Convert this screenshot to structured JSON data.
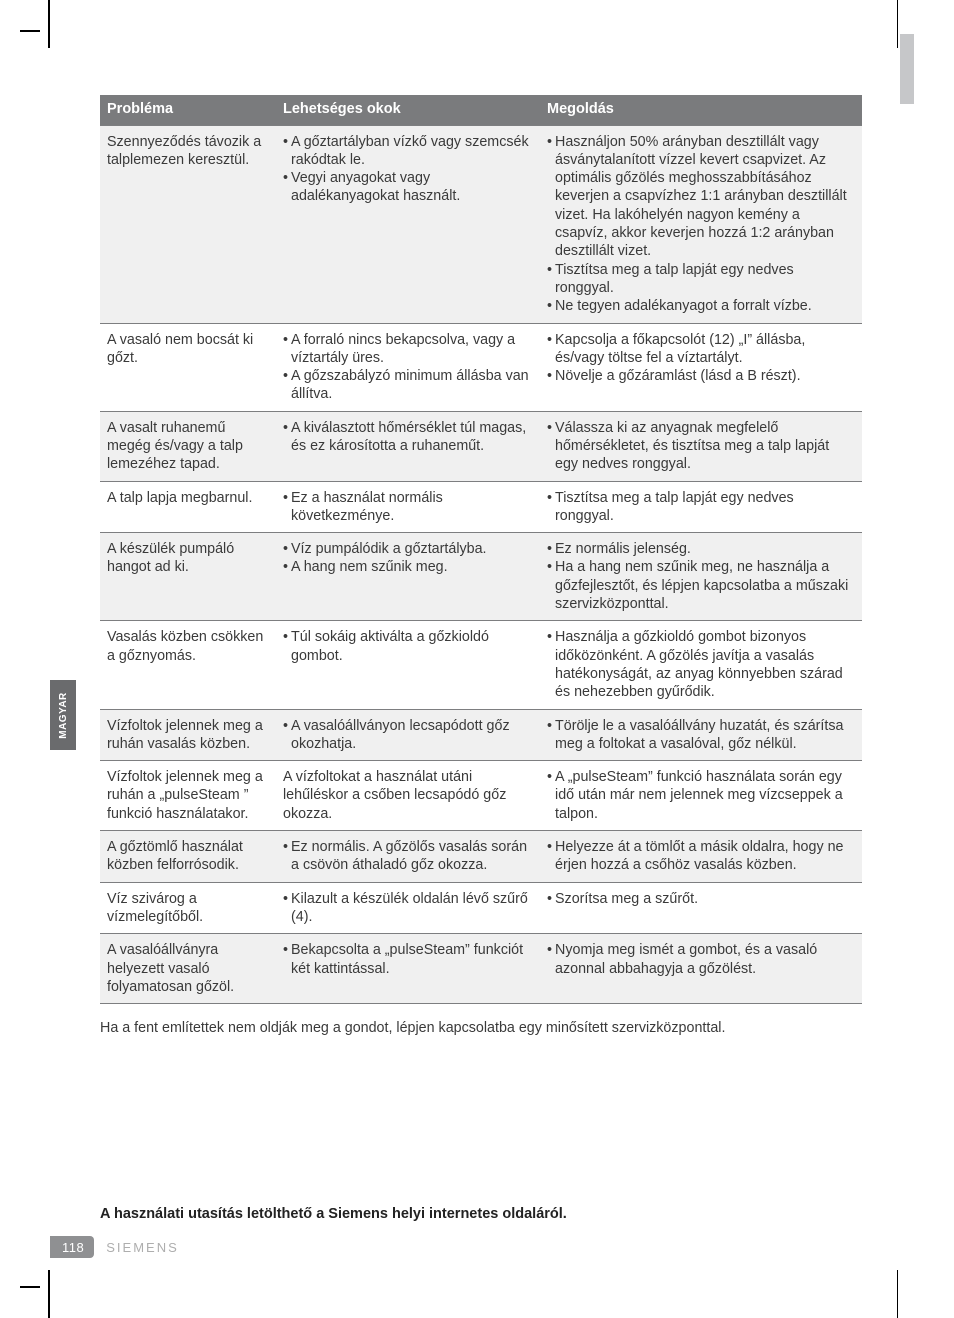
{
  "side_tab": "MAGYAR",
  "page_number": "118",
  "brand": "SIEMENS",
  "headers": {
    "problem": "Probléma",
    "cause": "Lehetséges okok",
    "solution": "Megoldás"
  },
  "rows": [
    {
      "shade": true,
      "problem": "Szennyeződés távozik a talplemezen keresztül.",
      "causes": [
        "A gőztartályban vízkő vagy szemcsék rakódtak le.",
        "Vegyi anyagokat vagy adalékanyagokat használt."
      ],
      "solutions": [
        "Használjon 50% arányban desztillált vagy ásványtalanított vízzel kevert csapvizet. Az optimális gőzölés meghosszabbításához keverjen a csapvízhez 1:1 arányban desztillált vizet. Ha lakóhelyén nagyon kemény a csapvíz, akkor keverjen hozzá 1:2 arányban desztillált vizet.",
        "Tisztítsa meg a talp lapját egy nedves ronggyal.",
        "Ne tegyen adalékanyagot a forralt vízbe."
      ]
    },
    {
      "shade": false,
      "problem": "A vasaló nem bocsát ki gőzt.",
      "causes": [
        "A forraló nincs bekapcsolva, vagy a víztartály üres.",
        "A gőzszabályzó minimum állásba van állítva."
      ],
      "solutions": [
        "Kapcsolja a főkapcsolót (12) „I” állásba, és/vagy töltse fel a víztartályt.",
        "Növelje a gőzáramlást (lásd a B részt)."
      ]
    },
    {
      "shade": true,
      "problem": "A vasalt ruhanemű megég és/vagy a talp lemezéhez tapad.",
      "causes": [
        "A kiválasztott hőmérséklet túl magas, és ez károsította a ruhaneműt."
      ],
      "solutions": [
        "Válassza ki az anyagnak megfelelő hőmérsékletet, és tisztítsa meg a talp lapját egy nedves ronggyal."
      ]
    },
    {
      "shade": false,
      "problem": "A talp lapja megbarnul.",
      "causes": [
        "Ez a használat normális következménye."
      ],
      "solutions": [
        "Tisztítsa meg a talp lapját egy nedves ronggyal."
      ]
    },
    {
      "shade": true,
      "problem": "A készülék pumpáló hangot ad ki.",
      "causes": [
        "Víz pumpálódik a gőztartályba.",
        "A hang nem szűnik meg."
      ],
      "solutions": [
        "Ez normális jelenség.",
        "Ha a hang nem szűnik meg, ne használja a gőzfejlesztőt, és lépjen kapcsolatba a műszaki szervizközponttal."
      ]
    },
    {
      "shade": false,
      "problem": "Vasalás közben csökken a gőznyomás.",
      "causes": [
        "Túl sokáig aktiválta a gőzkioldó gombot."
      ],
      "solutions": [
        "Használja a gőzkioldó gombot bizonyos időközönként. A gőzölés javítja a vasalás hatékonyságát, az anyag könnyebben szárad és nehezebben gyűrődik."
      ]
    },
    {
      "shade": true,
      "problem": "Vízfoltok jelennek meg a ruhán vasalás közben.",
      "causes": [
        "A vasalóállványon lecsapódott gőz okozhatja."
      ],
      "solutions": [
        "Törölje le a vasalóállvány huzatát, és szárítsa meg a foltokat a vasalóval, gőz nélkül."
      ]
    },
    {
      "shade": false,
      "problem": "Vízfoltok jelennek meg a ruhán a „pulseSteam ” funkció használatakor.",
      "causes_plain": "A vízfoltokat a használat utáni lehűléskor a csőben lecsapódó gőz okozza.",
      "solutions": [
        "A „pulseSteam” funkció használata során egy idő után már nem jelennek meg vízcseppek a talpon."
      ]
    },
    {
      "shade": true,
      "problem": "A gőztömlő használat közben felforrósodik.",
      "causes": [
        "Ez normális. A gőzölős vasalás során a csövön áthaladó gőz okozza."
      ],
      "solutions": [
        "Helyezze át a tömlőt a másik oldalra, hogy ne érjen hozzá a csőhöz vasalás közben."
      ]
    },
    {
      "shade": false,
      "problem": "Víz szivárog a vízmelegítőből.",
      "causes": [
        "Kilazult a készülék oldalán lévő szűrő (4)."
      ],
      "solutions": [
        "Szorítsa meg a szűrőt."
      ]
    },
    {
      "shade": true,
      "problem": "A vasalóállványra helyezett vasaló folyamatosan gőzöl.",
      "causes": [
        "Bekapcsolta a „pulseSteam” funkciót két kattintással."
      ],
      "solutions": [
        "Nyomja meg ismét a gombot, és a vasaló azonnal abbahagyja a gőzölést."
      ]
    }
  ],
  "note": "Ha a fent említettek nem oldják meg a gondot, lépjen kapcsolatba egy minősített szervizközponttal.",
  "download_note": "A használati utasítás letölthető a Siemens helyi internetes oldaláról."
}
